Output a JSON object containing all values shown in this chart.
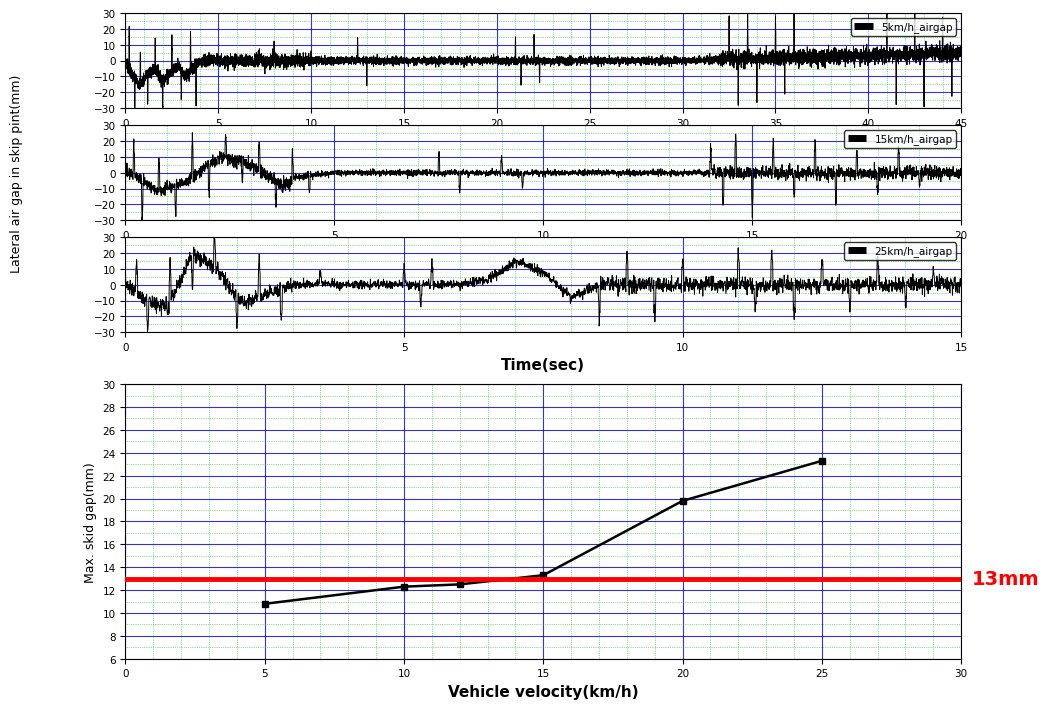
{
  "top_plots": [
    {
      "label": "5km/h_airgap",
      "xlim": [
        0,
        45
      ],
      "xticks": [
        0,
        5,
        10,
        15,
        20,
        25,
        30,
        35,
        40,
        45
      ],
      "ylim": [
        -30,
        30
      ],
      "yticks": [
        -30,
        -20,
        -10,
        0,
        10,
        20,
        30
      ]
    },
    {
      "label": "15km/h_airgap",
      "xlim": [
        0,
        20
      ],
      "xticks": [
        0,
        5,
        10,
        15,
        20
      ],
      "ylim": [
        -30,
        30
      ],
      "yticks": [
        -30,
        -20,
        -10,
        0,
        10,
        20,
        30
      ]
    },
    {
      "label": "25km/h_airgap",
      "xlim": [
        0,
        15
      ],
      "xticks": [
        0,
        5,
        10,
        15
      ],
      "ylim": [
        -30,
        30
      ],
      "yticks": [
        -30,
        -20,
        -10,
        0,
        10,
        20,
        30
      ]
    }
  ],
  "bottom_plot": {
    "x": [
      5,
      10,
      12,
      15,
      20,
      25
    ],
    "y": [
      10.8,
      12.3,
      12.5,
      13.3,
      19.8,
      23.3
    ],
    "xlim": [
      0,
      30
    ],
    "xticks": [
      0,
      5,
      10,
      15,
      20,
      25,
      30
    ],
    "ylim": [
      6,
      30
    ],
    "yticks": [
      6,
      8,
      10,
      12,
      14,
      16,
      18,
      20,
      22,
      24,
      26,
      28,
      30
    ],
    "hline_y": 13,
    "hline_label": "13mm",
    "xlabel": "Vehicle velocity(km/h)",
    "ylabel": "Max. skid gap(mm)"
  },
  "shared_ylabel": "Lateral air gap in skip pint(mm)",
  "time_xlabel": "Time(sec)",
  "major_grid_color": "#0000cc",
  "minor_grid_color": "#00bb00",
  "line_color": "#000000",
  "hline_color": "#ff0000",
  "hline_text_color": "#ff0000",
  "background_color": "#ffffff"
}
